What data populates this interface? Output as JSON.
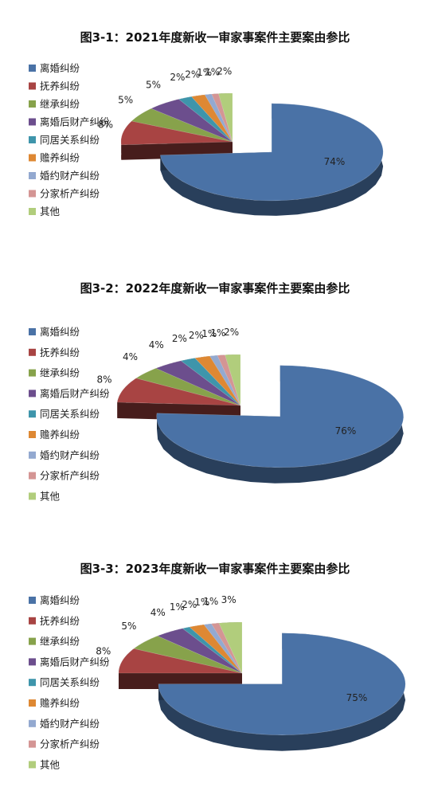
{
  "chart_data": [
    {
      "type": "pie",
      "title": "图3-1：2021年度新收一审家事案件主要案由参比",
      "categories": [
        "离婚纠纷",
        "抚养纠纷",
        "继承纠纷",
        "离婚后财产纠纷",
        "同居关系纠纷",
        "赡养纠纷",
        "婚约财产纠纷",
        "分家析产纠纷",
        "其他"
      ],
      "values": [
        74,
        8,
        5,
        5,
        2,
        2,
        1,
        1,
        2
      ],
      "labels": [
        "74%",
        "8%",
        "5%",
        "5%",
        "2%",
        "2%",
        "1%",
        "1%",
        "2%"
      ],
      "legend": "left"
    },
    {
      "type": "pie",
      "title": "图3-2：2022年度新收一审家事案件主要案由参比",
      "categories": [
        "离婚纠纷",
        "抚养纠纷",
        "继承纠纷",
        "离婚后财产纠纷",
        "同居关系纠纷",
        "赡养纠纷",
        "婚约财产纠纷",
        "分家析产纠纷",
        "其他"
      ],
      "values": [
        76,
        8,
        4,
        4,
        2,
        2,
        1,
        1,
        2
      ],
      "labels": [
        "76%",
        "8%",
        "4%",
        "4%",
        "2%",
        "2%",
        "1%",
        "1%",
        "2%"
      ],
      "legend": "left"
    },
    {
      "type": "pie",
      "title": "图3-3：2023年度新收一审家事案件主要案由参比",
      "categories": [
        "离婚纠纷",
        "抚养纠纷",
        "继承纠纷",
        "离婚后财产纠纷",
        "同居关系纠纷",
        "赡养纠纷",
        "婚约财产纠纷",
        "分家析产纠纷",
        "其他"
      ],
      "values": [
        75,
        8,
        5,
        4,
        1,
        2,
        1,
        1,
        3
      ],
      "labels": [
        "75%",
        "8%",
        "5%",
        "4%",
        "1%",
        "2%",
        "1%",
        "1%",
        "3%"
      ],
      "legend": "left"
    }
  ],
  "colors": [
    "#4A72A6",
    "#A84443",
    "#87A24B",
    "#6C4E8D",
    "#3E95AB",
    "#DE8833",
    "#93A9D0",
    "#D49594",
    "#B1CD7C"
  ]
}
